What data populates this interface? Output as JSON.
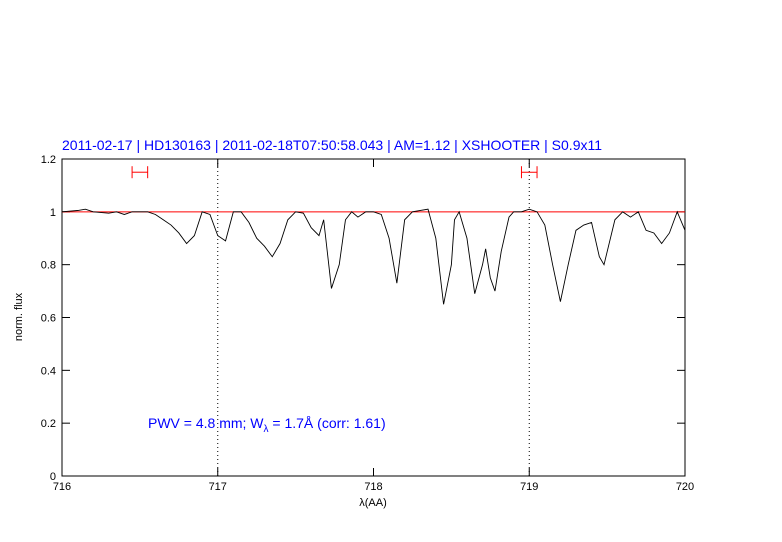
{
  "chart_data": {
    "type": "line",
    "title": "2011-02-17 | HD130163 | 2011-02-18T07:50:58.043 | AM=1.12 | XSHOOTER | S0.9x11",
    "x_label": "λ(AA)",
    "y_label": "norm. flux",
    "x": [
      716.0,
      716.1,
      716.15,
      716.2,
      716.3,
      716.35,
      716.4,
      716.45,
      716.5,
      716.55,
      716.6,
      716.65,
      716.7,
      716.75,
      716.8,
      716.85,
      716.9,
      716.95,
      717.0,
      717.05,
      717.1,
      717.15,
      717.2,
      717.25,
      717.3,
      717.35,
      717.4,
      717.45,
      717.5,
      717.55,
      717.6,
      717.65,
      717.68,
      717.73,
      717.78,
      717.82,
      717.86,
      717.9,
      717.95,
      718.0,
      718.05,
      718.1,
      718.15,
      718.2,
      718.25,
      718.35,
      718.4,
      718.45,
      718.5,
      718.52,
      718.55,
      718.6,
      718.65,
      718.7,
      718.72,
      718.75,
      718.78,
      718.82,
      718.87,
      718.9,
      718.95,
      719.0,
      719.05,
      719.1,
      719.15,
      719.2,
      719.25,
      719.3,
      719.35,
      719.4,
      719.45,
      719.48,
      719.55,
      719.6,
      719.65,
      719.7,
      719.75,
      719.8,
      719.85,
      719.9,
      719.95,
      720.0
    ],
    "values": [
      1.0,
      1.005,
      1.01,
      1.0,
      0.995,
      1.0,
      0.99,
      1.0,
      1.0,
      1.0,
      0.99,
      0.97,
      0.95,
      0.92,
      0.88,
      0.91,
      1.0,
      0.99,
      0.91,
      0.89,
      1.0,
      1.0,
      0.96,
      0.9,
      0.87,
      0.83,
      0.88,
      0.97,
      1.0,
      0.995,
      0.94,
      0.91,
      0.97,
      0.71,
      0.8,
      0.97,
      1.0,
      0.98,
      1.0,
      1.0,
      0.99,
      0.9,
      0.73,
      0.97,
      1.0,
      1.01,
      0.9,
      0.65,
      0.8,
      0.97,
      1.0,
      0.9,
      0.69,
      0.8,
      0.86,
      0.75,
      0.7,
      0.85,
      0.98,
      1.0,
      1.0,
      1.01,
      1.0,
      0.95,
      0.8,
      0.66,
      0.8,
      0.93,
      0.95,
      0.96,
      0.83,
      0.8,
      0.97,
      1.0,
      0.98,
      1.0,
      0.93,
      0.92,
      0.88,
      0.92,
      1.0,
      0.93
    ],
    "color": "#000000",
    "xlim": [
      716,
      720
    ],
    "ylim": [
      0,
      1.2
    ],
    "xticks": [
      716,
      717,
      718,
      719,
      720
    ],
    "yticks": [
      0,
      0.2,
      0.4,
      0.6,
      0.8,
      1,
      1.2
    ],
    "reference_line": {
      "value": 1,
      "color": "#ff0000"
    },
    "vlines": [
      717,
      719
    ],
    "intervals": [
      {
        "x": [
          716.45,
          716.55
        ],
        "y": 1.15
      },
      {
        "x": [
          718.95,
          719.05
        ],
        "y": 1.15
      }
    ],
    "interval_color": "#ff0000",
    "annotation": [
      "PWV = 4.8 mm; W",
      "λ",
      " = 1.7Å (corr: 1.61)"
    ],
    "text_color": "#0000ff"
  }
}
